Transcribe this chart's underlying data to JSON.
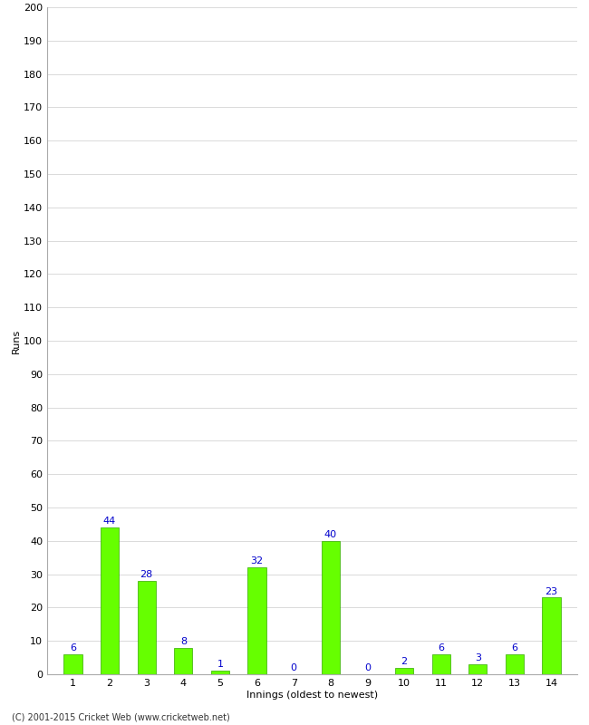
{
  "title": "",
  "categories": [
    1,
    2,
    3,
    4,
    5,
    6,
    7,
    8,
    9,
    10,
    11,
    12,
    13,
    14
  ],
  "values": [
    6,
    44,
    28,
    8,
    1,
    32,
    0,
    40,
    0,
    2,
    6,
    3,
    6,
    23
  ],
  "bar_color": "#66ff00",
  "bar_edge_color": "#33aa00",
  "xlabel": "Innings (oldest to newest)",
  "ylabel": "Runs",
  "ylim": [
    0,
    200
  ],
  "yticks": [
    0,
    10,
    20,
    30,
    40,
    50,
    60,
    70,
    80,
    90,
    100,
    110,
    120,
    130,
    140,
    150,
    160,
    170,
    180,
    190,
    200
  ],
  "label_color": "#0000cc",
  "label_fontsize": 8,
  "footer": "(C) 2001-2015 Cricket Web (www.cricketweb.net)",
  "background_color": "#ffffff",
  "grid_color": "#cccccc",
  "axis_fontsize": 8,
  "ylabel_fontsize": 8,
  "bar_width": 0.5
}
